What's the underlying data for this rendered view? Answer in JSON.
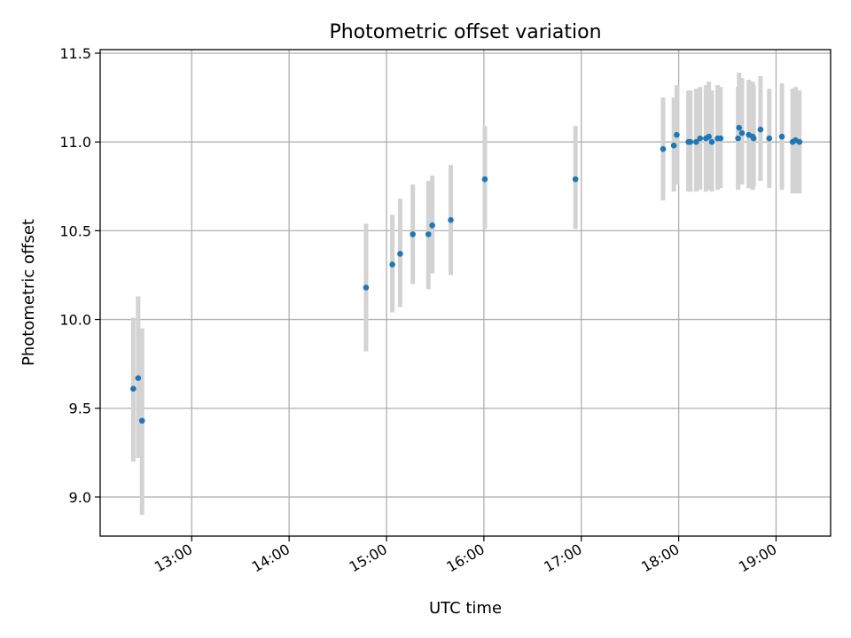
{
  "chart_data": {
    "type": "scatter",
    "title": "Photometric offset variation",
    "xlabel": "UTC time",
    "ylabel": "Photometric offset",
    "x_unit": "UTC hours",
    "xlim": [
      12.06,
      19.56
    ],
    "ylim": [
      8.78,
      11.52
    ],
    "x_ticks": [
      {
        "value": 13,
        "label": "13:00"
      },
      {
        "value": 14,
        "label": "14:00"
      },
      {
        "value": 15,
        "label": "15:00"
      },
      {
        "value": 16,
        "label": "16:00"
      },
      {
        "value": 17,
        "label": "17:00"
      },
      {
        "value": 18,
        "label": "18:00"
      },
      {
        "value": 19,
        "label": "19:00"
      }
    ],
    "y_ticks": [
      {
        "value": 9.0,
        "label": "9.0"
      },
      {
        "value": 9.5,
        "label": "9.5"
      },
      {
        "value": 10.0,
        "label": "10.0"
      },
      {
        "value": 10.5,
        "label": "10.5"
      },
      {
        "value": 11.0,
        "label": "11.0"
      },
      {
        "value": 11.5,
        "label": "11.5"
      }
    ],
    "grid": true,
    "colors": {
      "points": "#1f77b4",
      "error_bars": "#d3d3d3"
    },
    "points": [
      {
        "x": 12.4,
        "y": 9.61,
        "lo": 9.2,
        "hi": 10.01
      },
      {
        "x": 12.45,
        "y": 9.67,
        "lo": 9.22,
        "hi": 10.13
      },
      {
        "x": 12.49,
        "y": 9.43,
        "lo": 8.9,
        "hi": 9.95
      },
      {
        "x": 14.79,
        "y": 10.18,
        "lo": 9.82,
        "hi": 10.54
      },
      {
        "x": 15.06,
        "y": 10.31,
        "lo": 10.04,
        "hi": 10.59
      },
      {
        "x": 15.14,
        "y": 10.37,
        "lo": 10.07,
        "hi": 10.68
      },
      {
        "x": 15.27,
        "y": 10.48,
        "lo": 10.2,
        "hi": 10.76
      },
      {
        "x": 15.43,
        "y": 10.48,
        "lo": 10.17,
        "hi": 10.78
      },
      {
        "x": 15.47,
        "y": 10.53,
        "lo": 10.26,
        "hi": 10.81
      },
      {
        "x": 15.66,
        "y": 10.56,
        "lo": 10.25,
        "hi": 10.87
      },
      {
        "x": 16.01,
        "y": 10.79,
        "lo": 10.51,
        "hi": 11.09
      },
      {
        "x": 16.94,
        "y": 10.79,
        "lo": 10.51,
        "hi": 11.09
      },
      {
        "x": 17.84,
        "y": 10.96,
        "lo": 10.67,
        "hi": 11.25
      },
      {
        "x": 17.95,
        "y": 10.98,
        "lo": 10.72,
        "hi": 11.25
      },
      {
        "x": 17.98,
        "y": 11.04,
        "lo": 10.76,
        "hi": 11.32
      },
      {
        "x": 18.1,
        "y": 11.0,
        "lo": 10.72,
        "hi": 11.29
      },
      {
        "x": 18.12,
        "y": 11.0,
        "lo": 10.72,
        "hi": 11.29
      },
      {
        "x": 18.18,
        "y": 11.0,
        "lo": 10.72,
        "hi": 11.3
      },
      {
        "x": 18.22,
        "y": 11.02,
        "lo": 10.73,
        "hi": 11.31
      },
      {
        "x": 18.28,
        "y": 11.02,
        "lo": 10.72,
        "hi": 11.32
      },
      {
        "x": 18.31,
        "y": 11.03,
        "lo": 10.73,
        "hi": 11.34
      },
      {
        "x": 18.34,
        "y": 11.0,
        "lo": 10.72,
        "hi": 11.29
      },
      {
        "x": 18.4,
        "y": 11.02,
        "lo": 10.73,
        "hi": 11.32
      },
      {
        "x": 18.43,
        "y": 11.02,
        "lo": 10.74,
        "hi": 11.31
      },
      {
        "x": 18.61,
        "y": 11.02,
        "lo": 10.73,
        "hi": 11.31
      },
      {
        "x": 18.62,
        "y": 11.08,
        "lo": 10.78,
        "hi": 11.39
      },
      {
        "x": 18.65,
        "y": 11.05,
        "lo": 10.76,
        "hi": 11.36
      },
      {
        "x": 18.72,
        "y": 11.04,
        "lo": 10.74,
        "hi": 11.35
      },
      {
        "x": 18.76,
        "y": 11.03,
        "lo": 10.73,
        "hi": 11.34
      },
      {
        "x": 18.77,
        "y": 11.02,
        "lo": 10.75,
        "hi": 11.32
      },
      {
        "x": 18.84,
        "y": 11.07,
        "lo": 10.78,
        "hi": 11.37
      },
      {
        "x": 18.93,
        "y": 11.02,
        "lo": 10.74,
        "hi": 11.3
      },
      {
        "x": 19.06,
        "y": 11.03,
        "lo": 10.73,
        "hi": 11.33
      },
      {
        "x": 19.17,
        "y": 11.0,
        "lo": 10.71,
        "hi": 11.3
      },
      {
        "x": 19.2,
        "y": 11.01,
        "lo": 10.71,
        "hi": 11.31
      },
      {
        "x": 19.24,
        "y": 11.0,
        "lo": 10.71,
        "hi": 11.29
      }
    ]
  }
}
